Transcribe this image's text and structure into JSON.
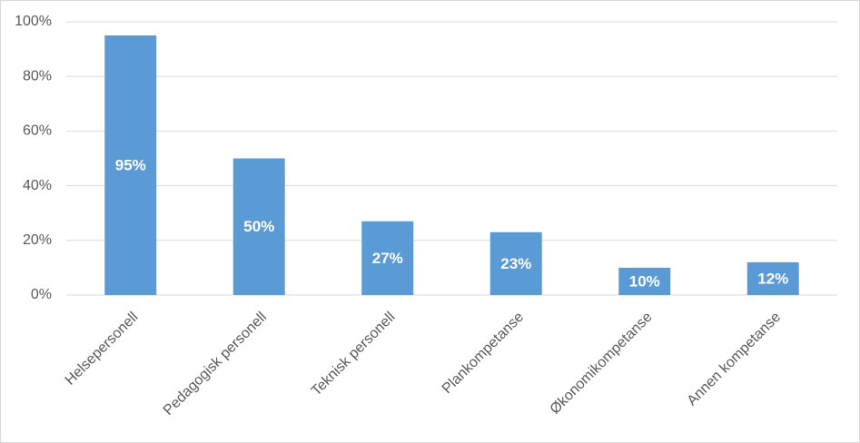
{
  "chart_data": {
    "type": "bar",
    "categories": [
      "Helsepersonell",
      "Pedagogisk personell",
      "Teknisk personell",
      "Plankompetanse",
      "Økonomikompetanse",
      "Annen kompetanse"
    ],
    "values": [
      95,
      50,
      27,
      23,
      10,
      12
    ],
    "value_labels": [
      "95%",
      "50%",
      "27%",
      "23%",
      "10%",
      "12%"
    ],
    "color": "#5b9bd5",
    "ylim": [
      0,
      100
    ],
    "yticks": [
      {
        "value": 0,
        "label": "0%"
      },
      {
        "value": 20,
        "label": "20%"
      },
      {
        "value": 40,
        "label": "40%"
      },
      {
        "value": 60,
        "label": "60%"
      },
      {
        "value": 80,
        "label": "80%"
      },
      {
        "value": 100,
        "label": "100%"
      }
    ],
    "grid": true
  }
}
